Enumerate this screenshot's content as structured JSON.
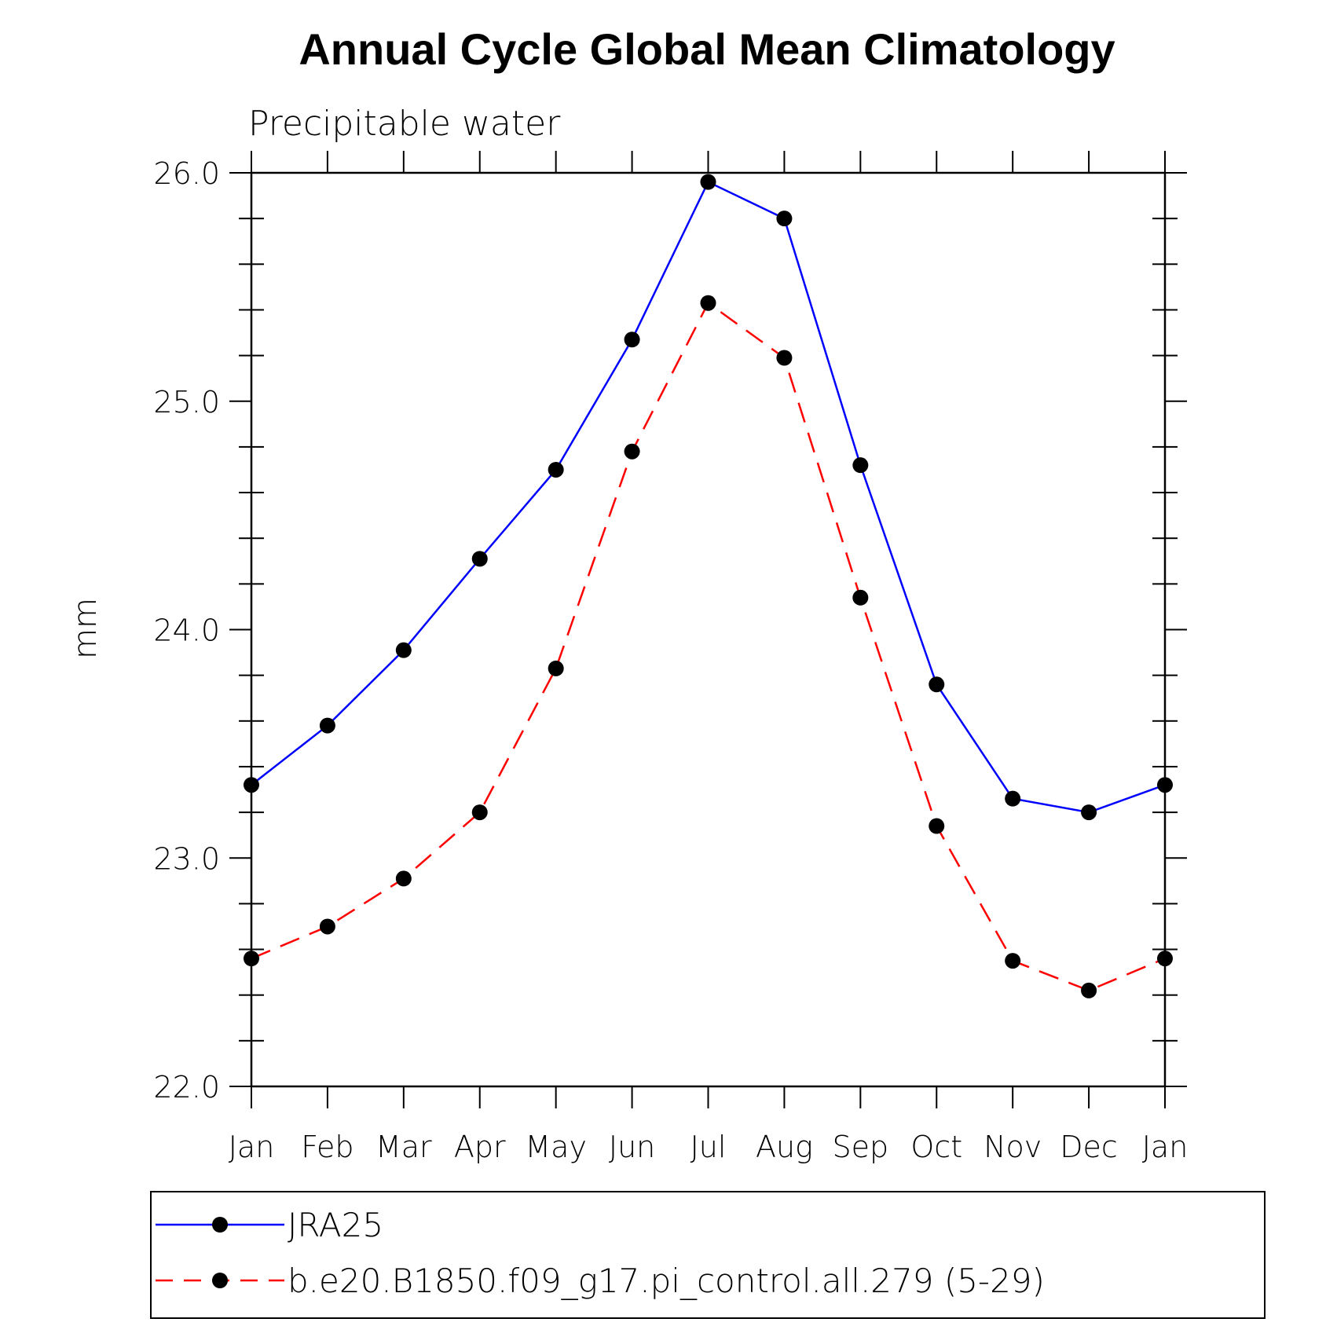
{
  "chart_data": {
    "type": "line",
    "title": "Annual Cycle Global Mean Climatology",
    "subtitle": "Precipitable water",
    "xlabel": "",
    "ylabel": "mm",
    "categories": [
      "Jan",
      "Feb",
      "Mar",
      "Apr",
      "May",
      "Jun",
      "Jul",
      "Aug",
      "Sep",
      "Oct",
      "Nov",
      "Dec",
      "Jan"
    ],
    "ylim": [
      22.0,
      26.0
    ],
    "yticks": [
      "22.0",
      "23.0",
      "24.0",
      "25.0",
      "26.0"
    ],
    "grid": false,
    "legend_position": "bottom",
    "series": [
      {
        "name": "JRA25",
        "color": "#0000ff",
        "dash": "solid",
        "marker": "filled-circle",
        "values": [
          23.32,
          23.58,
          23.91,
          24.31,
          24.7,
          25.27,
          25.96,
          25.8,
          24.72,
          23.76,
          23.26,
          23.2,
          23.32
        ]
      },
      {
        "name": "b.e20.B1850.f09_g17.pi_control.all.279 (5-29)",
        "color": "#ff0000",
        "dash": "dashed",
        "marker": "filled-circle",
        "values": [
          22.56,
          22.7,
          22.91,
          23.2,
          23.83,
          24.78,
          25.43,
          25.19,
          24.14,
          23.14,
          22.55,
          22.42,
          22.56
        ]
      }
    ]
  }
}
